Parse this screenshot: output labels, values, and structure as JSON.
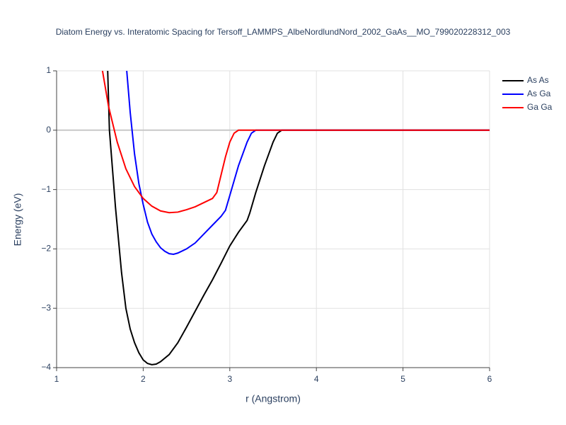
{
  "chart_data": {
    "type": "line",
    "title": "Diatom Energy vs. Interatomic Spacing for Tersoff_LAMMPS_AlbeNordlundNord_2002_GaAs__MO_799020228312_003",
    "x_label": "r (Angstrom)",
    "y_label": "Energy (eV)",
    "xlim": [
      1,
      6
    ],
    "ylim": [
      -4,
      1
    ],
    "xticks": [
      1,
      2,
      3,
      4,
      5,
      6
    ],
    "yticks": [
      {
        "value": -4,
        "label": "−4"
      },
      {
        "value": -3,
        "label": "−3"
      },
      {
        "value": -2,
        "label": "−2"
      },
      {
        "value": -1,
        "label": "−1"
      },
      0,
      1
    ],
    "grid": true,
    "legend": "top-right",
    "series": [
      {
        "name": "As As",
        "color": "#000000",
        "x": [
          1.59,
          1.61,
          1.68,
          1.75,
          1.8,
          1.85,
          1.9,
          1.95,
          2.0,
          2.05,
          2.1,
          2.15,
          2.2,
          2.3,
          2.4,
          2.5,
          2.6,
          2.7,
          2.8,
          2.9,
          3.0,
          3.1,
          3.2,
          3.23,
          3.3,
          3.4,
          3.5,
          3.55,
          3.6,
          6
        ],
        "values": [
          1.0,
          0.0,
          -1.3,
          -2.4,
          -3.0,
          -3.35,
          -3.58,
          -3.75,
          -3.87,
          -3.93,
          -3.95,
          -3.94,
          -3.9,
          -3.78,
          -3.58,
          -3.32,
          -3.05,
          -2.78,
          -2.52,
          -2.24,
          -1.95,
          -1.72,
          -1.52,
          -1.4,
          -1.05,
          -0.6,
          -0.2,
          -0.05,
          0,
          0
        ]
      },
      {
        "name": "As Ga",
        "color": "#0000ff",
        "x": [
          1.81,
          1.85,
          1.9,
          1.95,
          2.0,
          2.05,
          2.1,
          2.15,
          2.2,
          2.25,
          2.3,
          2.35,
          2.4,
          2.5,
          2.6,
          2.7,
          2.8,
          2.9,
          2.95,
          3.0,
          3.1,
          3.2,
          3.25,
          3.3,
          6
        ],
        "values": [
          1.0,
          0.3,
          -0.4,
          -0.9,
          -1.25,
          -1.55,
          -1.75,
          -1.88,
          -1.98,
          -2.04,
          -2.08,
          -2.09,
          -2.07,
          -2.0,
          -1.9,
          -1.75,
          -1.6,
          -1.45,
          -1.35,
          -1.1,
          -0.6,
          -0.2,
          -0.05,
          0,
          0
        ]
      },
      {
        "name": "Ga Ga",
        "color": "#ff0000",
        "x": [
          1.53,
          1.6,
          1.7,
          1.8,
          1.9,
          2.0,
          2.1,
          2.2,
          2.3,
          2.4,
          2.5,
          2.6,
          2.7,
          2.8,
          2.85,
          2.9,
          2.95,
          3.0,
          3.05,
          3.1,
          6
        ],
        "values": [
          1.0,
          0.4,
          -0.2,
          -0.65,
          -0.95,
          -1.15,
          -1.28,
          -1.36,
          -1.39,
          -1.38,
          -1.34,
          -1.29,
          -1.22,
          -1.15,
          -1.05,
          -0.75,
          -0.45,
          -0.2,
          -0.05,
          0,
          0
        ]
      }
    ]
  }
}
